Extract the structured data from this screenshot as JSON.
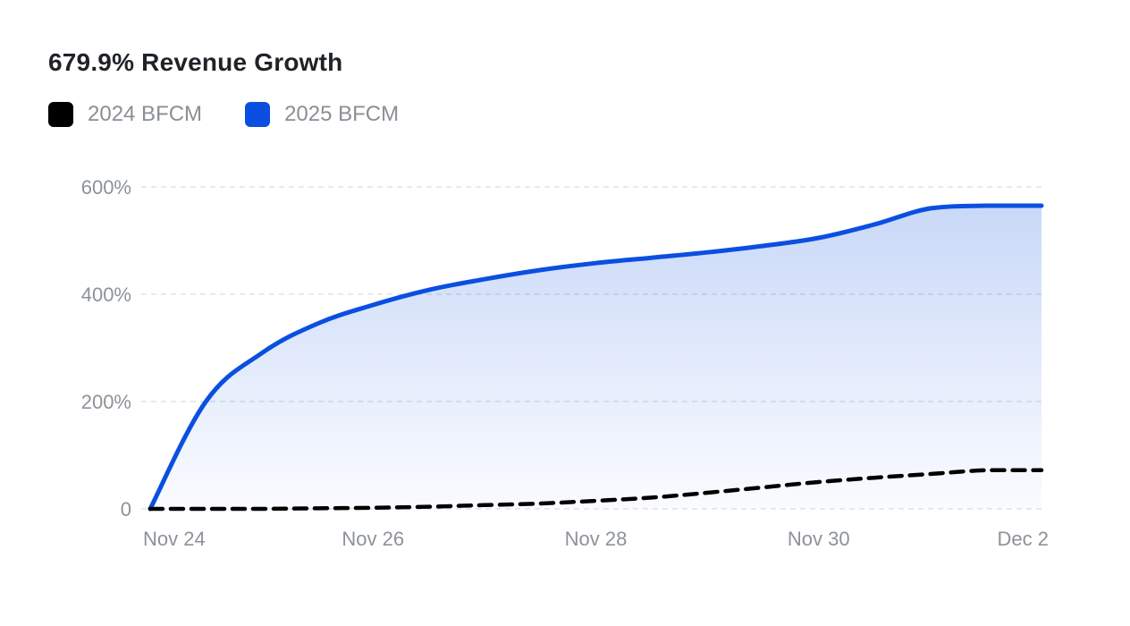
{
  "title": "679.9% Revenue Growth",
  "legend": [
    {
      "label": "2024 BFCM",
      "color": "#000000"
    },
    {
      "label": "2025 BFCM",
      "color": "#0a4fe0"
    }
  ],
  "chart_data": {
    "type": "area",
    "title": "679.9% Revenue Growth",
    "xlabel": "",
    "ylabel": "",
    "x_ticks": [
      "Nov 24",
      "Nov 26",
      "Nov 28",
      "Nov 30",
      "Dec 2"
    ],
    "y_ticks": [
      "0",
      "200%",
      "400%",
      "600%"
    ],
    "ylim": [
      0,
      600
    ],
    "xlim": [
      "Nov 24",
      "Dec 2"
    ],
    "grid": "horizontal dashed",
    "legend_position": "top-left",
    "series": [
      {
        "name": "2025 BFCM",
        "color": "#0a4fe0",
        "style": "solid with gradient fill",
        "x": [
          "Nov 24",
          "Nov 24 12:00",
          "Nov 25",
          "Nov 25 12:00",
          "Nov 26",
          "Nov 26 12:00",
          "Nov 27",
          "Nov 27 12:00",
          "Nov 28",
          "Nov 28 12:00",
          "Nov 29",
          "Nov 29 12:00",
          "Nov 30",
          "Nov 30 12:00",
          "Dec 1",
          "Dec 1 12:00",
          "Dec 2"
        ],
        "values": [
          0,
          200,
          290,
          345,
          380,
          408,
          428,
          445,
          458,
          468,
          478,
          490,
          505,
          530,
          560,
          565,
          565
        ]
      },
      {
        "name": "2024 BFCM",
        "color": "#000000",
        "style": "dashed",
        "x": [
          "Nov 24",
          "Nov 24 12:00",
          "Nov 25",
          "Nov 25 12:00",
          "Nov 26",
          "Nov 26 12:00",
          "Nov 27",
          "Nov 27 12:00",
          "Nov 28",
          "Nov 28 12:00",
          "Nov 29",
          "Nov 29 12:00",
          "Nov 30",
          "Nov 30 12:00",
          "Dec 1",
          "Dec 1 12:00",
          "Dec 2"
        ],
        "values": [
          0,
          0,
          0,
          1,
          2,
          4,
          7,
          10,
          15,
          21,
          30,
          40,
          50,
          58,
          65,
          72,
          72
        ]
      }
    ]
  }
}
